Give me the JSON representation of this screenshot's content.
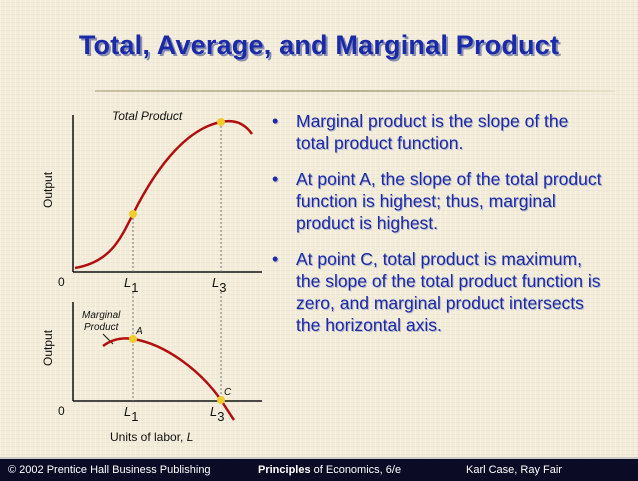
{
  "slide": {
    "title": "Total, Average, and Marginal Product"
  },
  "top_chart": {
    "ylabel": "Output",
    "curve_label": "Total Product",
    "origin": "0",
    "tick_l1_main": "L",
    "tick_l1_sub": "1",
    "tick_l3_main": "L",
    "tick_l3_sub": "3"
  },
  "bottom_chart": {
    "ylabel": "Output",
    "curve_label_line1": "Marginal",
    "curve_label_line2": "Product",
    "point_a": "A",
    "point_c": "C",
    "origin": "0",
    "tick_l1_main": "L",
    "tick_l1_sub": "1",
    "tick_l3_main": "L",
    "tick_l3_sub": "3",
    "xlabel_text": "Units of labor, ",
    "xlabel_var": "L"
  },
  "bullets": [
    "Marginal product is the slope of the total product function.",
    "At point A, the slope of the total product function is highest; thus, marginal product is highest.",
    "At point C, total product is maximum, the slope of the total product function is zero, and marginal product intersects the horizontal axis."
  ],
  "bullet_glyph": "•",
  "footer": {
    "copyright": "© 2002 Prentice Hall Business Publishing",
    "book_bold": "Principles",
    "book_rest": " of Economics, 6/e",
    "authors": "Karl Case, Ray Fair"
  },
  "colors": {
    "title": "#1a2aa8",
    "curve": "#b01010",
    "point": "#f2cc2a",
    "footer_bg": "#0b0b26"
  }
}
